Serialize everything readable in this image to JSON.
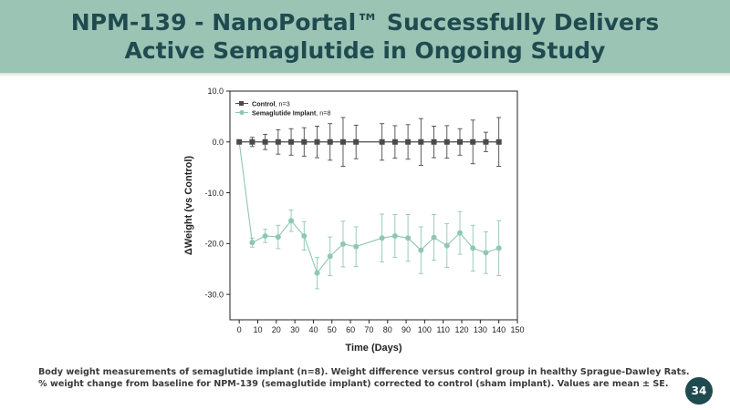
{
  "slide": {
    "title_line1": "NPM-139 - NanoPortal™ Successfully Delivers",
    "title_line2": "Active Semaglutide in Ongoing Study",
    "caption_line1": "Body weight measurements of semaglutide implant (n=8). Weight difference versus control group in healthy Sprague-Dawley Rats.",
    "caption_line2": "% weight change from baseline for NPM-139 (semaglutide implant) corrected to control (sham implant). Values are mean ± SE.",
    "page_number": "34"
  },
  "colors": {
    "title_band": "#9bc4b5",
    "title_text": "#1f4a4f",
    "control_series": "#4a4a4a",
    "implant_series": "#8fc7b3",
    "page_badge": "#1f4a4f"
  },
  "chart_data": {
    "type": "line",
    "title": "",
    "xlabel": "Time (Days)",
    "ylabel": "ΔWeight (vs Control)",
    "xlim": [
      -5,
      150
    ],
    "ylim": [
      -35,
      10
    ],
    "xticks": [
      0,
      10,
      20,
      30,
      40,
      50,
      60,
      70,
      80,
      90,
      100,
      110,
      120,
      130,
      140,
      150
    ],
    "yticks": [
      10,
      0,
      -10,
      -20,
      -30
    ],
    "ytick_labels": [
      "10.0",
      "0.0",
      "-10.0",
      "-20.0",
      "-30.0"
    ],
    "grid": false,
    "legend": "top-left",
    "series": [
      {
        "name": "Control",
        "legend_suffix": ", n=3",
        "marker": "square",
        "x": [
          0,
          7,
          14,
          21,
          28,
          35,
          42,
          49,
          56,
          63,
          77,
          84,
          91,
          98,
          105,
          112,
          119,
          126,
          133,
          140
        ],
        "y": [
          0,
          0,
          0,
          0,
          0,
          0,
          0,
          0,
          0,
          0,
          0,
          0,
          0,
          0,
          0,
          0,
          0,
          0,
          0,
          0
        ],
        "err": [
          0,
          0.9,
          1.5,
          2.4,
          2.6,
          2.8,
          3.1,
          3.6,
          4.8,
          3.3,
          3.6,
          3.2,
          3.4,
          4.6,
          3.1,
          3.2,
          2.6,
          4.3,
          1.9,
          4.8
        ]
      },
      {
        "name": "Semaglutide Implant",
        "legend_suffix": ", n=8",
        "marker": "circle",
        "x": [
          0,
          7,
          14,
          21,
          28,
          35,
          42,
          49,
          56,
          63,
          77,
          84,
          91,
          98,
          105,
          112,
          119,
          126,
          133,
          140
        ],
        "y": [
          0,
          -19.8,
          -18.5,
          -18.7,
          -15.5,
          -18.5,
          -25.8,
          -22.5,
          -20.1,
          -20.6,
          -18.9,
          -18.5,
          -18.9,
          -21.3,
          -18.8,
          -20.4,
          -17.9,
          -20.9,
          -21.8,
          -20.9
        ],
        "err": [
          0,
          0.9,
          1.3,
          2.3,
          2.1,
          2.8,
          3.1,
          3.8,
          4.5,
          3.9,
          4.7,
          4.2,
          4.6,
          4.6,
          4.5,
          4.3,
          4.2,
          4.5,
          4.1,
          5.4
        ]
      }
    ]
  }
}
